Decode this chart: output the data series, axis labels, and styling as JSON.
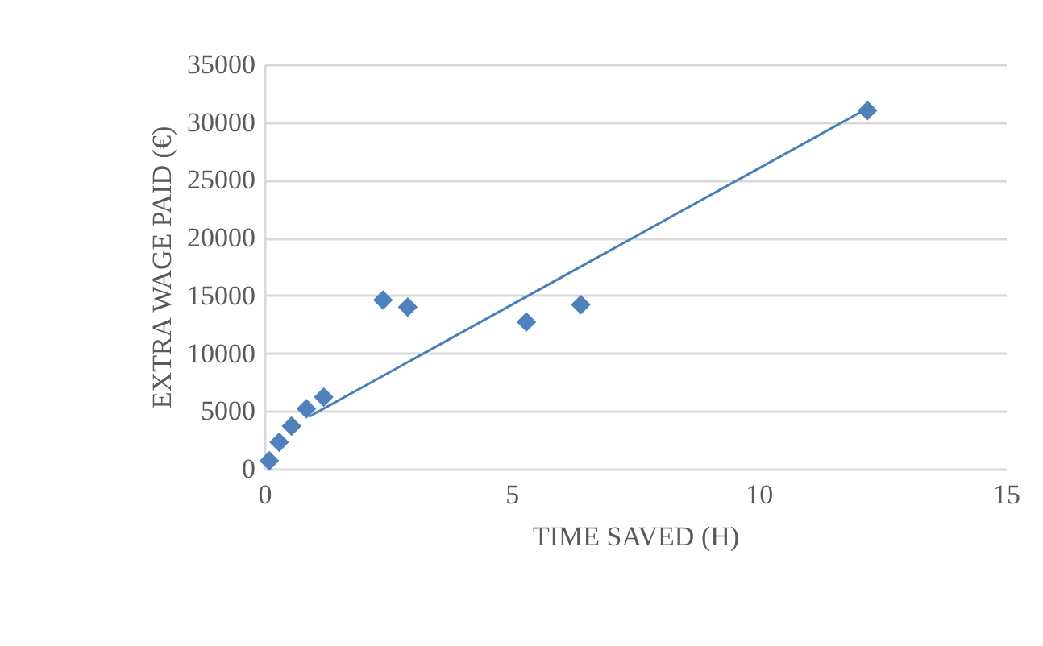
{
  "chart_data": {
    "type": "scatter",
    "xlabel": "TIME SAVED (H)",
    "ylabel": "EXTRA WAGE PAID (€)",
    "series": [
      {
        "color": "#4f81bd",
        "marker": "diamond",
        "x": [
          0.1,
          0.3,
          0.55,
          0.85,
          1.2,
          2.4,
          2.9,
          5.3,
          6.4,
          12.2
        ],
        "values": [
          700,
          2300,
          3700,
          5200,
          6200,
          14600,
          14000,
          12700,
          14200,
          31000
        ]
      },
      {
        "type": "line",
        "color": "#4a7ebb",
        "marker": "none",
        "line_style": "solid",
        "x": [
          0.9,
          12.2
        ],
        "values": [
          4500,
          31200
        ]
      }
    ],
    "xlim": [
      0,
      15
    ],
    "xticks": [
      0,
      5,
      10,
      15
    ],
    "ylim": [
      0,
      35000
    ],
    "yticks": [
      0,
      5000,
      10000,
      15000,
      20000,
      25000,
      30000,
      35000
    ],
    "grid": "y"
  }
}
